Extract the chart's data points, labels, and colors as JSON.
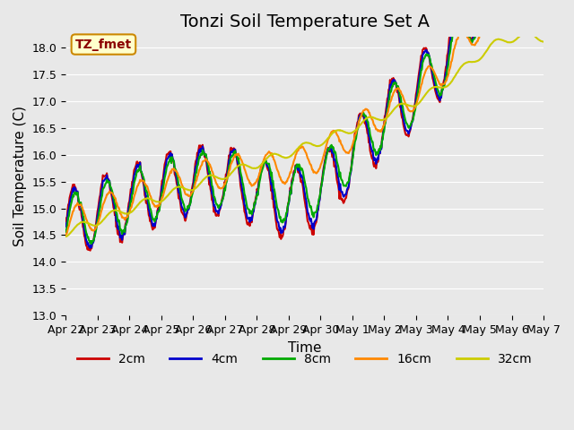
{
  "title": "Tonzi Soil Temperature Set A",
  "xlabel": "Time",
  "ylabel": "Soil Temperature (C)",
  "ylim": [
    13.0,
    18.2
  ],
  "yticks": [
    13.0,
    13.5,
    14.0,
    14.5,
    15.0,
    15.5,
    16.0,
    16.5,
    17.0,
    17.5,
    18.0
  ],
  "x_labels": [
    "Apr 22",
    "Apr 23",
    "Apr 24",
    "Apr 25",
    "Apr 26",
    "Apr 27",
    "Apr 28",
    "Apr 29",
    "Apr 30",
    "May 1",
    "May 2",
    "May 3",
    "May 4",
    "May 5",
    "May 6",
    "May 7"
  ],
  "legend_label": "TZ_fmet",
  "series_labels": [
    "2cm",
    "4cm",
    "8cm",
    "16cm",
    "32cm"
  ],
  "series_colors": [
    "#cc0000",
    "#0000cc",
    "#00aa00",
    "#ff8800",
    "#cccc00"
  ],
  "background_color": "#e8e8e8",
  "plot_bg_color": "#e8e8e8",
  "grid_color": "#ffffff",
  "title_fontsize": 14,
  "axis_fontsize": 11,
  "tick_fontsize": 9,
  "legend_box_color": "#ffffcc",
  "legend_box_edge": "#cc8800"
}
